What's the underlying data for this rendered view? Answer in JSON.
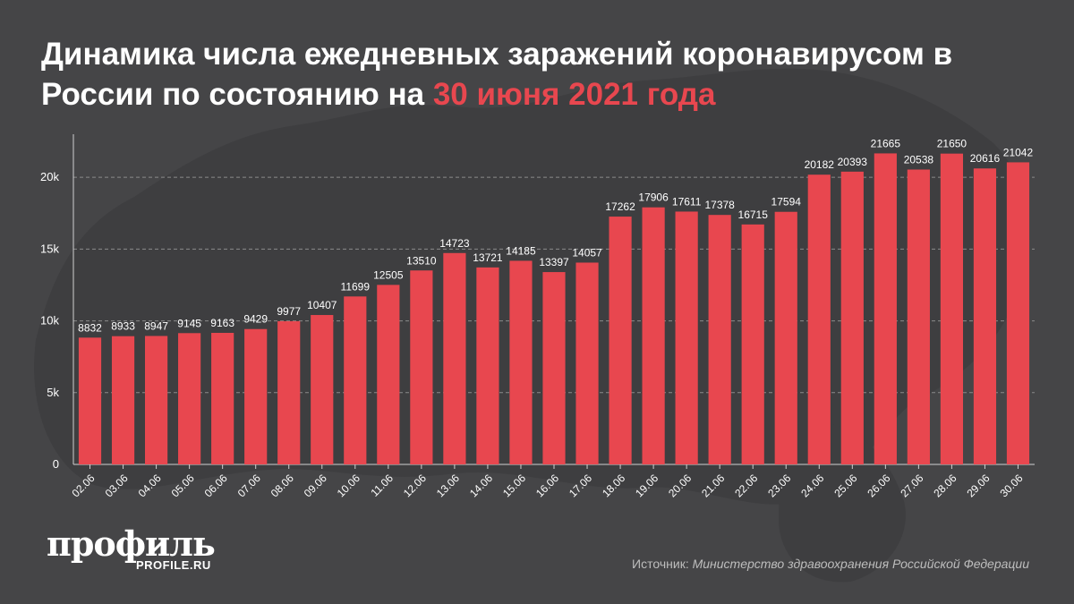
{
  "header": {
    "title_main": "Динамика числа ежедневных заражений коронавирусом в России по состоянию на",
    "title_accent": "30 июня 2021 года"
  },
  "colors": {
    "background": "#454547",
    "bar": "#e8474f",
    "accent": "#e8474f",
    "text": "#ffffff",
    "grid": "#8a8a8a"
  },
  "chart_data": {
    "type": "bar",
    "categories": [
      "02.06",
      "03.06",
      "04.06",
      "05.06",
      "06.06",
      "07.06",
      "08.06",
      "09.06",
      "10.06",
      "11.06",
      "12.06",
      "13.06",
      "14.06",
      "15.06",
      "16.06",
      "17.06",
      "18.06",
      "19.06",
      "20.06",
      "21.06",
      "22.06",
      "23.06",
      "24.06",
      "25.06",
      "26.06",
      "27.06",
      "28.06",
      "29.06",
      "30.06"
    ],
    "values": [
      8832,
      8933,
      8947,
      9145,
      9163,
      9429,
      9977,
      10407,
      11699,
      12505,
      13510,
      14723,
      13721,
      14185,
      13397,
      14057,
      17262,
      17906,
      17611,
      17378,
      16715,
      17594,
      20182,
      20393,
      21665,
      20538,
      21650,
      20616,
      21042
    ],
    "yticks": [
      {
        "value": 0,
        "label": "0"
      },
      {
        "value": 5000,
        "label": "5k"
      },
      {
        "value": 10000,
        "label": "10k"
      },
      {
        "value": 15000,
        "label": "15k"
      },
      {
        "value": 20000,
        "label": "20k"
      }
    ],
    "ylim": [
      0,
      23000
    ],
    "grid": true,
    "xlabel": "",
    "ylabel": ""
  },
  "footer": {
    "brand": "профиль",
    "brand_url": "PROFILE.RU",
    "source_label": "Источник:",
    "source_name": "Министерство здравоохранения Российской Федерации"
  }
}
